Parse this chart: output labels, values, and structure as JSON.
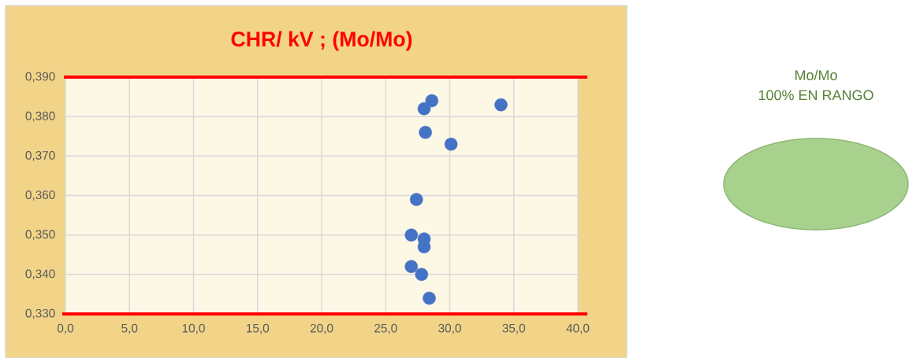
{
  "chart_data": [
    {
      "type": "scatter",
      "title": "CHR/ kV   ; (Mo/Mo)",
      "x": [
        28.6,
        28.0,
        34.0,
        28.1,
        30.1,
        27.4,
        27.0,
        28.0,
        28.0,
        27.0,
        27.8,
        28.4
      ],
      "values": [
        0.384,
        0.382,
        0.383,
        0.376,
        0.373,
        0.359,
        0.35,
        0.349,
        0.347,
        0.342,
        0.34,
        0.334
      ],
      "color": "#4472c4",
      "marker": "circle",
      "xlim": [
        0,
        40
      ],
      "ylim": [
        0.33,
        0.39
      ],
      "xticks": [
        {
          "value": 0,
          "label": "0,0"
        },
        {
          "value": 5,
          "label": "5,0"
        },
        {
          "value": 10,
          "label": "10,0"
        },
        {
          "value": 15,
          "label": "15,0"
        },
        {
          "value": 20,
          "label": "20,0"
        },
        {
          "value": 25,
          "label": "25,0"
        },
        {
          "value": 30,
          "label": "30,0"
        },
        {
          "value": 35,
          "label": "35,0"
        },
        {
          "value": 40,
          "label": "40,0"
        }
      ],
      "yticks": [
        {
          "value": 0.33,
          "label": "0,330"
        },
        {
          "value": 0.34,
          "label": "0,340"
        },
        {
          "value": 0.35,
          "label": "0,350"
        },
        {
          "value": 0.36,
          "label": "0,360"
        },
        {
          "value": 0.37,
          "label": "0,370"
        },
        {
          "value": 0.38,
          "label": "0,380"
        },
        {
          "value": 0.39,
          "label": "0,390"
        }
      ],
      "grid": true,
      "ref_lines": [
        {
          "axis": "y",
          "value": 0.39,
          "color": "#ff0000"
        }
      ]
    },
    {
      "type": "pie",
      "title": "Mo/Mo",
      "subtitle": "100%  EN RANGO",
      "categories": [
        null
      ],
      "values": [
        100
      ],
      "colors": [
        "#a9d18e"
      ]
    }
  ]
}
